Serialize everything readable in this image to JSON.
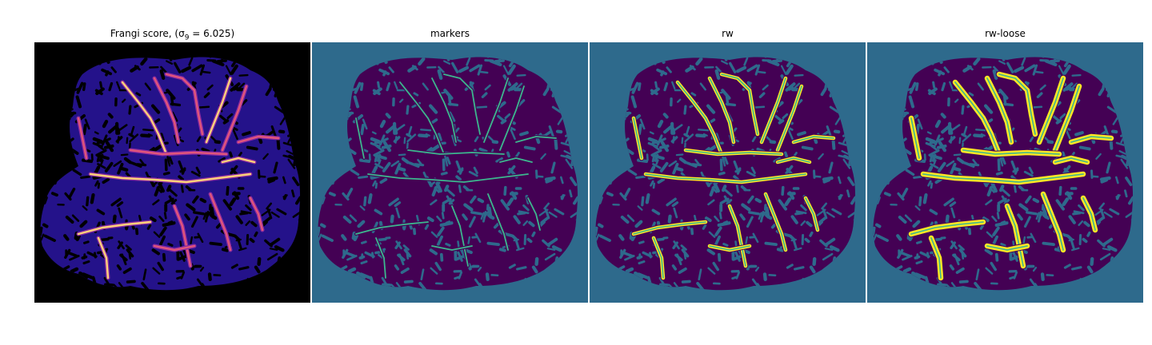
{
  "panels": [
    {
      "title": "Frangi score, (σ",
      "subscript": "9",
      "title_suffix": " = 6.025)"
    },
    {
      "title": "markers"
    },
    {
      "title": "rw"
    },
    {
      "title": "rw-loose"
    }
  ],
  "colors": {
    "frangi_background": "#000000",
    "frangi_tissue": "#24128a",
    "frangi_vessel_low": "#8a2aa0",
    "frangi_vessel_mid": "#e0567a",
    "frangi_vessel_high": "#fcd27a",
    "label_background": "#2e6a8c",
    "label_tissue": "#440154",
    "label_marker": "#3cb78e",
    "label_vessel": "#fde725"
  }
}
